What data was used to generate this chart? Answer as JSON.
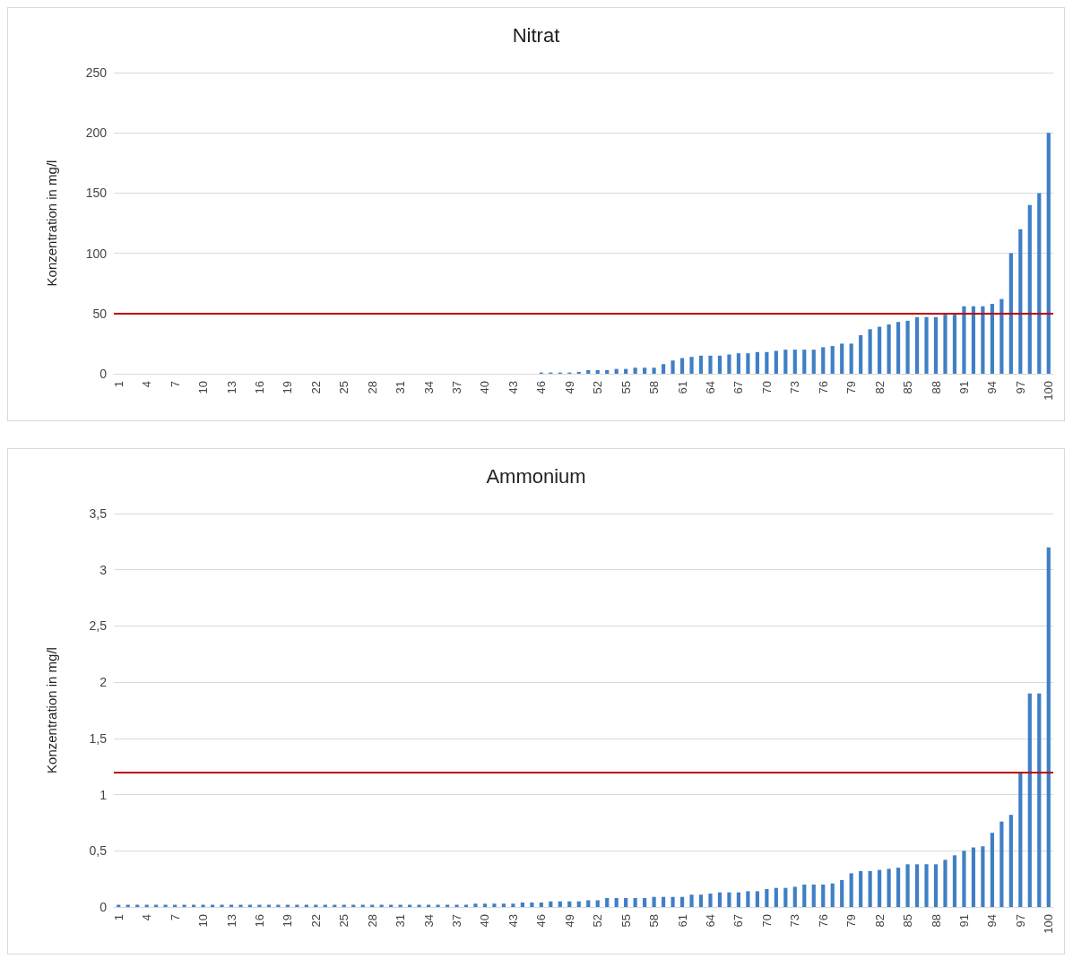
{
  "chart_data": [
    {
      "type": "bar",
      "title": "Nitrat",
      "ylabel": "Konzentration in mg/l",
      "color": "#3f7fc6",
      "grid": "y",
      "ylim": [
        0,
        250
      ],
      "yticks": [
        0,
        50,
        100,
        150,
        200,
        250
      ],
      "categories": [
        "1",
        null,
        null,
        "4",
        null,
        null,
        "7",
        null,
        null,
        "10",
        null,
        null,
        "13",
        null,
        null,
        "16",
        null,
        null,
        "19",
        null,
        null,
        "22",
        null,
        null,
        "25",
        null,
        null,
        "28",
        null,
        null,
        "31",
        null,
        null,
        "34",
        null,
        null,
        "37",
        null,
        null,
        "40",
        null,
        null,
        "43",
        null,
        null,
        "46",
        null,
        null,
        "49",
        null,
        null,
        "52",
        null,
        null,
        "55",
        null,
        null,
        "58",
        null,
        null,
        "61",
        null,
        null,
        "64",
        null,
        null,
        "67",
        null,
        null,
        "70",
        null,
        null,
        "73",
        null,
        null,
        "76",
        null,
        null,
        "79",
        null,
        null,
        "82",
        null,
        null,
        "85",
        null,
        null,
        "88",
        null,
        null,
        "91",
        null,
        null,
        "94",
        null,
        null,
        "97",
        null,
        null,
        "100"
      ],
      "values": [
        0,
        0,
        0,
        0,
        0,
        0,
        0,
        0,
        0,
        0,
        0,
        0,
        0,
        0,
        0,
        0,
        0,
        0,
        0,
        0,
        0,
        0,
        0,
        0,
        0,
        0,
        0,
        0,
        0,
        0,
        0,
        0,
        0,
        0,
        0,
        0,
        0,
        0,
        0,
        0,
        0,
        0,
        0,
        0,
        0,
        1,
        1,
        1,
        1,
        1.5,
        3,
        3,
        3,
        4,
        4,
        5,
        5,
        5,
        8,
        11,
        13,
        14,
        15,
        15,
        15,
        16,
        17,
        17,
        18,
        18,
        19,
        20,
        20,
        20,
        20,
        22,
        23,
        25,
        25,
        32,
        37,
        39,
        41,
        43,
        44,
        47,
        47,
        47,
        49,
        49,
        56,
        56,
        56,
        58,
        62,
        100,
        120,
        140,
        150,
        200
      ],
      "ref_lines": [
        {
          "axis": "y",
          "value": 50,
          "color": "#c00000"
        }
      ]
    },
    {
      "type": "bar",
      "title": "Ammonium",
      "ylabel": "Konzentration in mg/l",
      "color": "#3f7fc6",
      "grid": "y",
      "ylim": [
        0,
        3.5
      ],
      "yticks": [
        0,
        {
          "value": 0.5,
          "label": "0,5"
        },
        1,
        {
          "value": 1.5,
          "label": "1,5"
        },
        2,
        {
          "value": 2.5,
          "label": "2,5"
        },
        3,
        {
          "value": 3.5,
          "label": "3,5"
        }
      ],
      "categories": [
        "1",
        null,
        null,
        "4",
        null,
        null,
        "7",
        null,
        null,
        "10",
        null,
        null,
        "13",
        null,
        null,
        "16",
        null,
        null,
        "19",
        null,
        null,
        "22",
        null,
        null,
        "25",
        null,
        null,
        "28",
        null,
        null,
        "31",
        null,
        null,
        "34",
        null,
        null,
        "37",
        null,
        null,
        "40",
        null,
        null,
        "43",
        null,
        null,
        "46",
        null,
        null,
        "49",
        null,
        null,
        "52",
        null,
        null,
        "55",
        null,
        null,
        "58",
        null,
        null,
        "61",
        null,
        null,
        "64",
        null,
        null,
        "67",
        null,
        null,
        "70",
        null,
        null,
        "73",
        null,
        null,
        "76",
        null,
        null,
        "79",
        null,
        null,
        "82",
        null,
        null,
        "85",
        null,
        null,
        "88",
        null,
        null,
        "91",
        null,
        null,
        "94",
        null,
        null,
        "97",
        null,
        null,
        "100"
      ],
      "values": [
        0.02,
        0.02,
        0.02,
        0.02,
        0.02,
        0.02,
        0.02,
        0.02,
        0.02,
        0.02,
        0.02,
        0.02,
        0.02,
        0.02,
        0.02,
        0.02,
        0.02,
        0.02,
        0.02,
        0.02,
        0.02,
        0.02,
        0.02,
        0.02,
        0.02,
        0.02,
        0.02,
        0.02,
        0.02,
        0.02,
        0.02,
        0.02,
        0.02,
        0.02,
        0.02,
        0.02,
        0.02,
        0.02,
        0.03,
        0.03,
        0.03,
        0.03,
        0.03,
        0.04,
        0.04,
        0.04,
        0.05,
        0.05,
        0.05,
        0.05,
        0.06,
        0.06,
        0.08,
        0.08,
        0.08,
        0.08,
        0.08,
        0.09,
        0.09,
        0.09,
        0.09,
        0.11,
        0.11,
        0.12,
        0.13,
        0.13,
        0.13,
        0.14,
        0.14,
        0.16,
        0.17,
        0.17,
        0.18,
        0.2,
        0.2,
        0.2,
        0.21,
        0.24,
        0.3,
        0.32,
        0.32,
        0.33,
        0.34,
        0.35,
        0.38,
        0.38,
        0.38,
        0.38,
        0.42,
        0.46,
        0.5,
        0.53,
        0.54,
        0.66,
        0.76,
        0.82,
        1.19,
        1.9,
        1.9,
        3.2
      ],
      "ref_lines": [
        {
          "axis": "y",
          "value": 1.2,
          "color": "#c00000"
        }
      ]
    }
  ]
}
